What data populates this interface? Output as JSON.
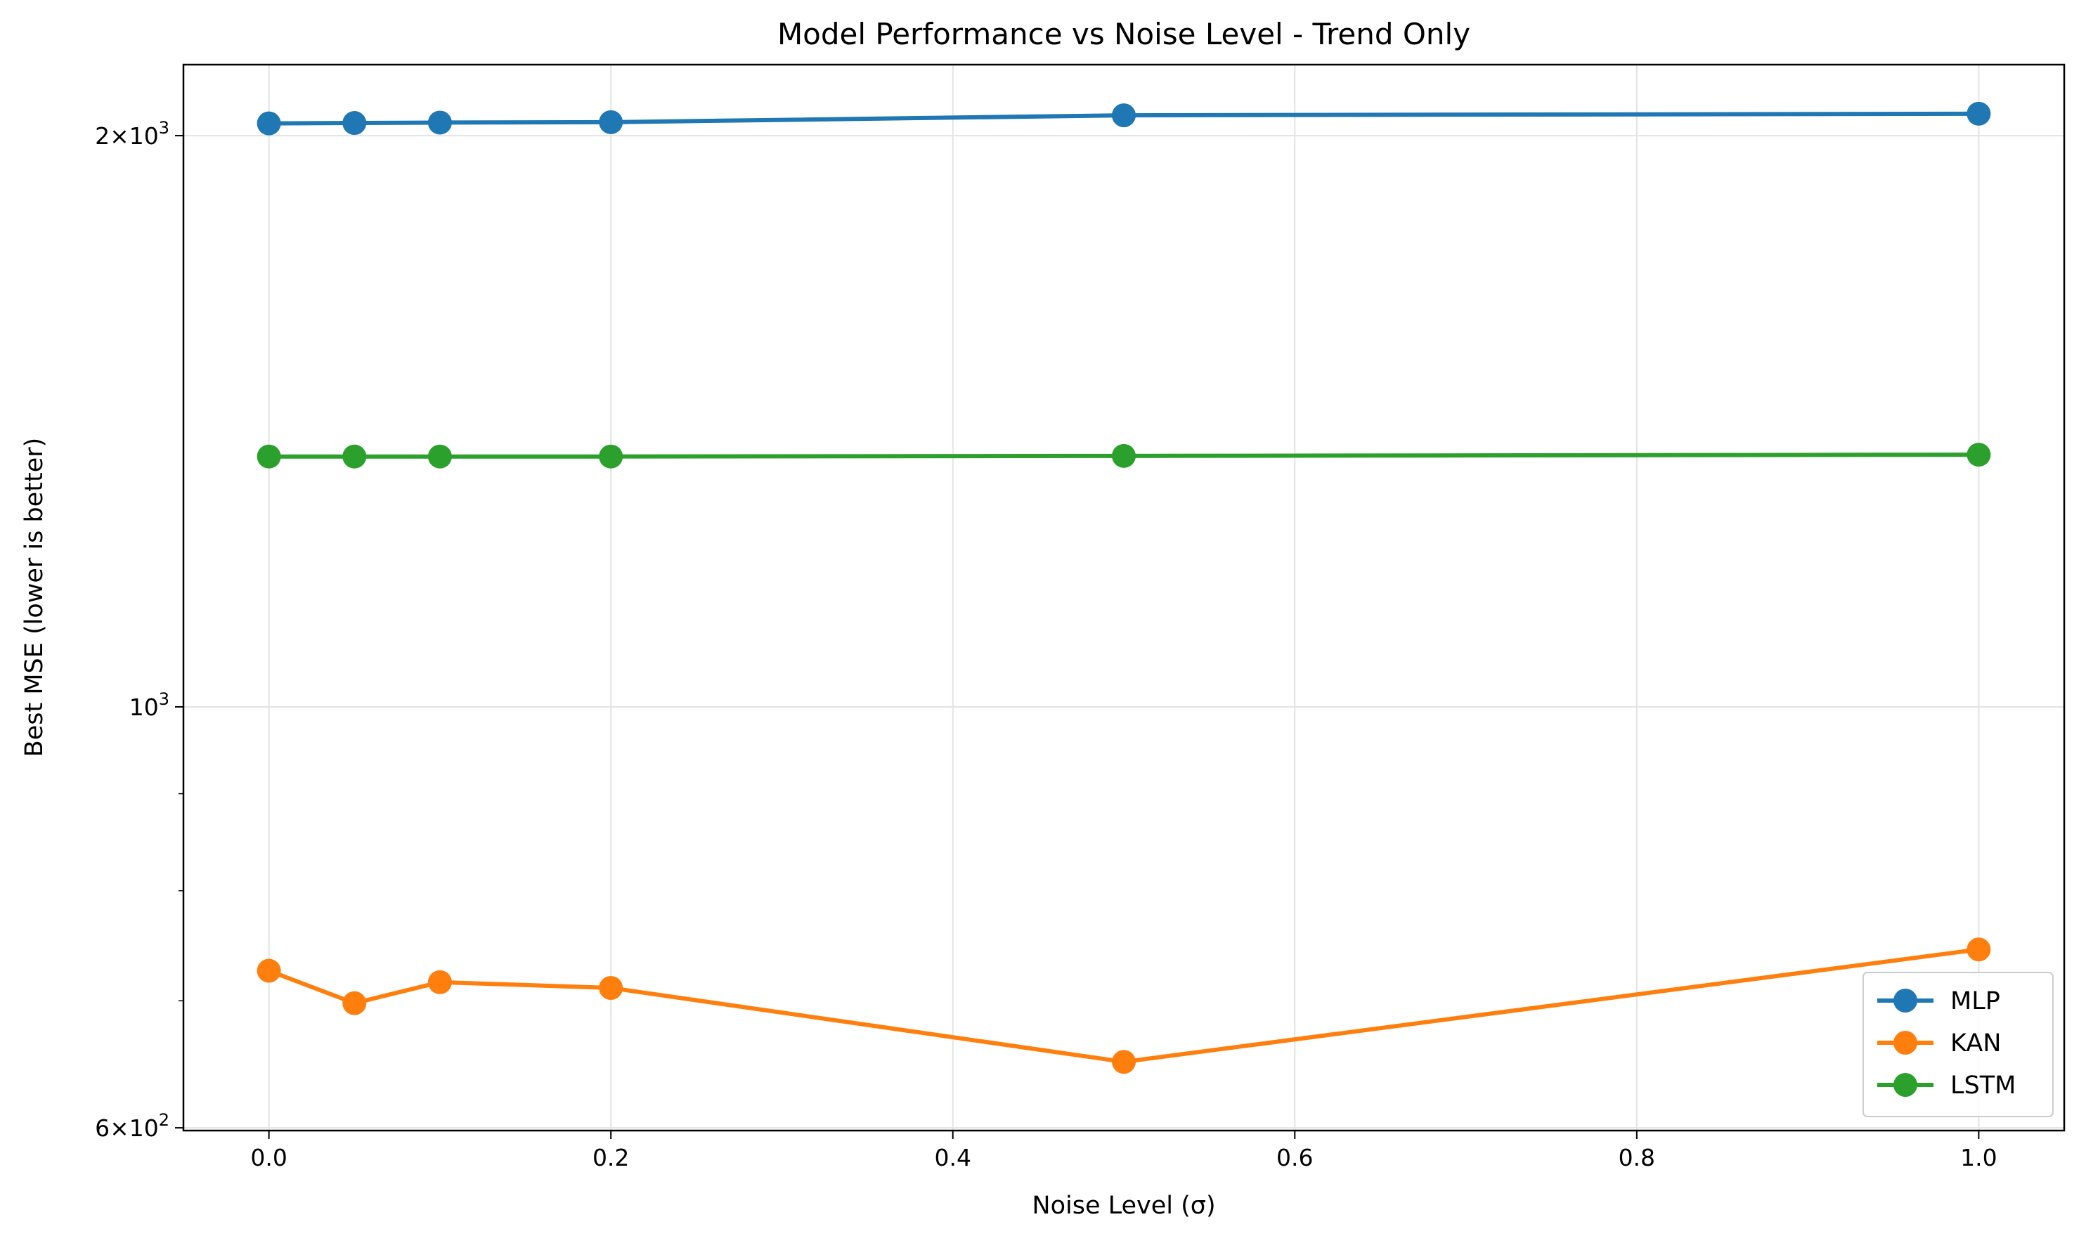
{
  "chart_data": {
    "type": "line",
    "title": "Model Performance vs Noise Level - Trend Only",
    "xlabel": "Noise Level (σ)",
    "ylabel": "Best MSE (lower is better)",
    "yscale": "log",
    "x": [
      0.0,
      0.05,
      0.1,
      0.2,
      0.5,
      1.0
    ],
    "xlim": [
      -0.05,
      1.05
    ],
    "ylim": [
      598,
      2180
    ],
    "x_ticks": [
      {
        "value": 0.0,
        "label": "0.0"
      },
      {
        "value": 0.2,
        "label": "0.2"
      },
      {
        "value": 0.4,
        "label": "0.4"
      },
      {
        "value": 0.6,
        "label": "0.6"
      },
      {
        "value": 0.8,
        "label": "0.8"
      },
      {
        "value": 1.0,
        "label": "1.0"
      }
    ],
    "y_ticks": [
      {
        "value": 2000,
        "mantissa": "2×10",
        "exp": "3"
      },
      {
        "value": 1000,
        "mantissa": "10",
        "exp": "3"
      },
      {
        "value": 600,
        "mantissa": "6×10",
        "exp": "2"
      }
    ],
    "grid": true,
    "legend_position": "lower-right",
    "series": [
      {
        "name": "MLP",
        "color": "#1f77b4",
        "values": [
          2030,
          2031,
          2032,
          2033,
          2050,
          2054
        ]
      },
      {
        "name": "KAN",
        "color": "#ff7f0e",
        "values": [
          726,
          698,
          716,
          711,
          650,
          745
        ]
      },
      {
        "name": "LSTM",
        "color": "#2ca02c",
        "values": [
          1355,
          1355,
          1355,
          1355,
          1356,
          1358
        ]
      }
    ]
  }
}
